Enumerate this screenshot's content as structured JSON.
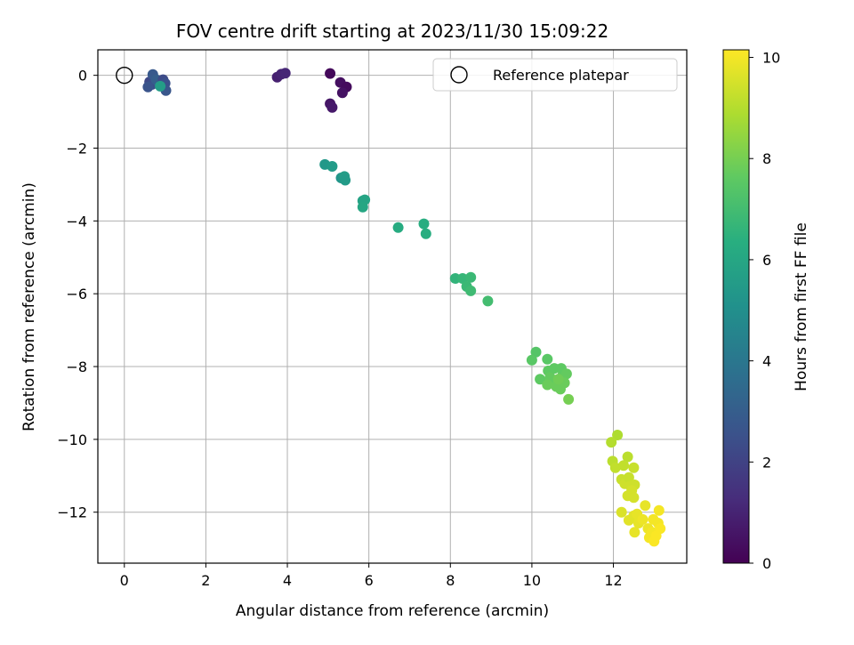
{
  "chart_data": {
    "type": "scatter",
    "title": "FOV centre drift starting at 2023/11/30 15:09:22",
    "xlabel": "Angular distance from reference (arcmin)",
    "ylabel": "Rotation from reference (arcmin)",
    "xlim": [
      -0.65,
      13.8
    ],
    "ylim": [
      -13.4,
      0.7
    ],
    "xticks": [
      0,
      2,
      4,
      6,
      8,
      10,
      12
    ],
    "yticks": [
      0,
      -2,
      -4,
      -6,
      -8,
      -10,
      -12
    ],
    "grid": true,
    "legend": {
      "placement": "top-right",
      "entries": [
        "Reference platepar"
      ]
    },
    "colorbar": {
      "label": "Hours from first FF file",
      "range": [
        0,
        10.15
      ],
      "ticks": [
        0,
        2,
        4,
        6,
        8,
        10
      ],
      "colormap": "viridis"
    },
    "reference_point": {
      "name": "Reference platepar",
      "x": 0,
      "y": 0
    },
    "series": [
      {
        "name": "",
        "points": [
          [
            5.05,
            0.05,
            0.2
          ],
          [
            5.3,
            -0.2,
            0.4
          ],
          [
            5.45,
            -0.32,
            0.3
          ],
          [
            5.35,
            -0.48,
            0.5
          ],
          [
            5.05,
            -0.78,
            0.6
          ],
          [
            5.1,
            -0.88,
            0.7
          ],
          [
            3.75,
            -0.05,
            0.9
          ],
          [
            3.85,
            0.03,
            1.0
          ],
          [
            3.95,
            0.06,
            1.1
          ],
          [
            0.62,
            -0.18,
            2.2
          ],
          [
            0.68,
            -0.25,
            2.4
          ],
          [
            0.58,
            -0.32,
            2.6
          ],
          [
            0.7,
            0.02,
            2.8
          ],
          [
            0.78,
            -0.12,
            3.0
          ],
          [
            0.85,
            -0.2,
            3.1
          ],
          [
            0.92,
            -0.25,
            2.0
          ],
          [
            0.95,
            -0.12,
            2.3
          ],
          [
            1.0,
            -0.22,
            2.5
          ],
          [
            1.02,
            -0.42,
            2.7
          ],
          [
            0.88,
            -0.3,
            5.6
          ],
          [
            4.92,
            -2.45,
            5.4
          ],
          [
            5.1,
            -2.5,
            5.5
          ],
          [
            5.32,
            -2.82,
            5.3
          ],
          [
            5.4,
            -2.78,
            5.6
          ],
          [
            5.42,
            -2.88,
            5.5
          ],
          [
            5.85,
            -3.45,
            5.8
          ],
          [
            5.9,
            -3.42,
            5.9
          ],
          [
            5.85,
            -3.62,
            6.0
          ],
          [
            6.72,
            -4.18,
            6.2
          ],
          [
            7.35,
            -4.08,
            6.3
          ],
          [
            7.4,
            -4.35,
            6.3
          ],
          [
            8.12,
            -5.58,
            6.6
          ],
          [
            8.3,
            -5.58,
            6.7
          ],
          [
            8.5,
            -5.55,
            6.8
          ],
          [
            8.4,
            -5.8,
            6.8
          ],
          [
            8.5,
            -5.92,
            6.9
          ],
          [
            8.92,
            -6.2,
            7.0
          ],
          [
            10.1,
            -7.6,
            7.4
          ],
          [
            10.0,
            -7.82,
            7.5
          ],
          [
            10.38,
            -7.8,
            7.5
          ],
          [
            10.2,
            -8.35,
            7.6
          ],
          [
            10.4,
            -8.12,
            7.6
          ],
          [
            10.45,
            -8.3,
            7.7
          ],
          [
            10.5,
            -8.45,
            7.7
          ],
          [
            10.6,
            -8.55,
            7.8
          ],
          [
            10.7,
            -8.62,
            7.8
          ],
          [
            10.75,
            -8.25,
            7.7
          ],
          [
            10.72,
            -8.05,
            7.6
          ],
          [
            10.85,
            -8.2,
            7.7
          ],
          [
            10.8,
            -8.45,
            7.8
          ],
          [
            10.55,
            -8.05,
            7.6
          ],
          [
            10.38,
            -8.5,
            7.8
          ],
          [
            10.65,
            -8.35,
            7.9
          ],
          [
            10.9,
            -8.9,
            8.0
          ],
          [
            12.1,
            -9.88,
            8.9
          ],
          [
            11.95,
            -10.08,
            9.0
          ],
          [
            12.35,
            -10.48,
            9.1
          ],
          [
            11.98,
            -10.6,
            9.1
          ],
          [
            12.05,
            -10.78,
            9.2
          ],
          [
            12.25,
            -10.72,
            9.2
          ],
          [
            12.5,
            -10.78,
            9.3
          ],
          [
            12.2,
            -11.1,
            9.3
          ],
          [
            12.28,
            -11.22,
            9.4
          ],
          [
            12.38,
            -11.05,
            9.3
          ],
          [
            12.42,
            -11.28,
            9.4
          ],
          [
            12.52,
            -11.25,
            9.4
          ],
          [
            12.45,
            -11.4,
            9.5
          ],
          [
            12.35,
            -11.55,
            9.5
          ],
          [
            12.5,
            -11.6,
            9.5
          ],
          [
            12.2,
            -12.0,
            9.6
          ],
          [
            12.38,
            -12.22,
            9.7
          ],
          [
            12.5,
            -12.1,
            9.7
          ],
          [
            12.58,
            -12.05,
            9.8
          ],
          [
            12.62,
            -12.3,
            9.8
          ],
          [
            12.52,
            -12.55,
            9.8
          ],
          [
            12.72,
            -12.2,
            9.9
          ],
          [
            12.78,
            -11.82,
            9.8
          ],
          [
            12.85,
            -12.45,
            9.9
          ],
          [
            12.88,
            -12.7,
            10.0
          ],
          [
            12.95,
            -12.55,
            10.0
          ],
          [
            13.0,
            -12.8,
            10.1
          ],
          [
            13.05,
            -12.65,
            10.1
          ],
          [
            13.1,
            -12.3,
            10.0
          ],
          [
            13.12,
            -11.95,
            10.0
          ],
          [
            13.15,
            -12.45,
            10.1
          ],
          [
            12.98,
            -12.2,
            10.0
          ]
        ]
      }
    ]
  }
}
